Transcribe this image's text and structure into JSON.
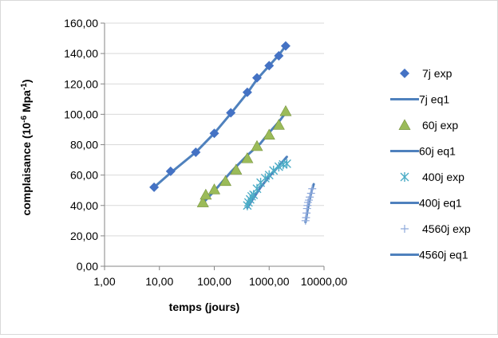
{
  "chart_data": {
    "type": "scatter",
    "title": "",
    "xlabel": "temps (jours)",
    "ylabel_main": "complaisance (10",
    "ylabel_sup1": "-6",
    "ylabel_mid": " Mpa",
    "ylabel_sup2": "-1",
    "ylabel_end": ")",
    "x_scale": "log",
    "xlim": [
      1,
      10000
    ],
    "ylim": [
      0,
      160
    ],
    "x_ticks": [
      1,
      10,
      100,
      1000,
      10000
    ],
    "x_tick_labels": [
      "1,00",
      "10,00",
      "100,00",
      "1000,00",
      "10000,00"
    ],
    "y_ticks": [
      0,
      20,
      40,
      60,
      80,
      100,
      120,
      140,
      160
    ],
    "y_tick_labels": [
      "0,00",
      "20,00",
      "40,00",
      "60,00",
      "80,00",
      "100,00",
      "120,00",
      "140,00",
      "160,00"
    ],
    "grid": "horizontal",
    "legend": "right",
    "series": [
      {
        "name": "7j exp",
        "kind": "points",
        "marker": "diamond",
        "color": "#4472c4",
        "x": [
          8,
          16,
          46,
          100,
          200,
          400,
          600,
          1000,
          1500,
          2000
        ],
        "y": [
          52,
          62.5,
          75,
          87.5,
          101,
          114.5,
          124,
          132,
          138.5,
          145
        ]
      },
      {
        "name": "7j eq1",
        "kind": "line",
        "color": "#4f81bd",
        "x": [
          8,
          16,
          46,
          100,
          200,
          400,
          600,
          1000,
          1500,
          2000
        ],
        "y": [
          52,
          61.5,
          75,
          87.5,
          100.5,
          114,
          123,
          132,
          139,
          145
        ]
      },
      {
        "name": "60j exp",
        "kind": "points",
        "marker": "triangle",
        "color": "#9bbb59",
        "x": [
          62,
          70,
          100,
          160,
          250,
          400,
          600,
          1000,
          1500,
          2000
        ],
        "y": [
          42,
          47,
          50.5,
          56,
          63.5,
          71,
          79,
          86.5,
          93,
          102
        ]
      },
      {
        "name": "60j eq1",
        "kind": "line",
        "color": "#4f81bd",
        "x": [
          62,
          100,
          200,
          400,
          700,
          1000,
          1500,
          2000
        ],
        "y": [
          41.5,
          49.5,
          62,
          73,
          81,
          88,
          95,
          101
        ]
      },
      {
        "name": "400j exp",
        "kind": "points",
        "marker": "asterisk",
        "color": "#4bacc6",
        "x": [
          400,
          420,
          450,
          480,
          520,
          600,
          700,
          850,
          1000,
          1200,
          1500,
          1800,
          2100
        ],
        "y": [
          40,
          42,
          44,
          46,
          47,
          51,
          55,
          58,
          60,
          63,
          65.5,
          67,
          67.5
        ]
      },
      {
        "name": "400j eq1",
        "kind": "line",
        "color": "#4f81bd",
        "x": [
          400,
          500,
          700,
          1000,
          1500,
          2100
        ],
        "y": [
          38.5,
          44,
          52,
          59,
          66,
          72
        ]
      },
      {
        "name": "4560j exp",
        "kind": "points",
        "marker": "plus",
        "color": "#8ea9db",
        "x": [
          4600,
          4700,
          4800,
          4900,
          5000,
          5100,
          5300,
          5500,
          5800,
          6100
        ],
        "y": [
          30,
          32,
          35,
          38,
          40,
          42,
          43.5,
          45.5,
          48,
          51
        ]
      },
      {
        "name": "4560j eq1",
        "kind": "line",
        "color": "#4f81bd",
        "x": [
          4600,
          5000,
          5500,
          6000,
          6500
        ],
        "y": [
          29,
          37,
          44,
          50,
          54
        ]
      }
    ]
  }
}
